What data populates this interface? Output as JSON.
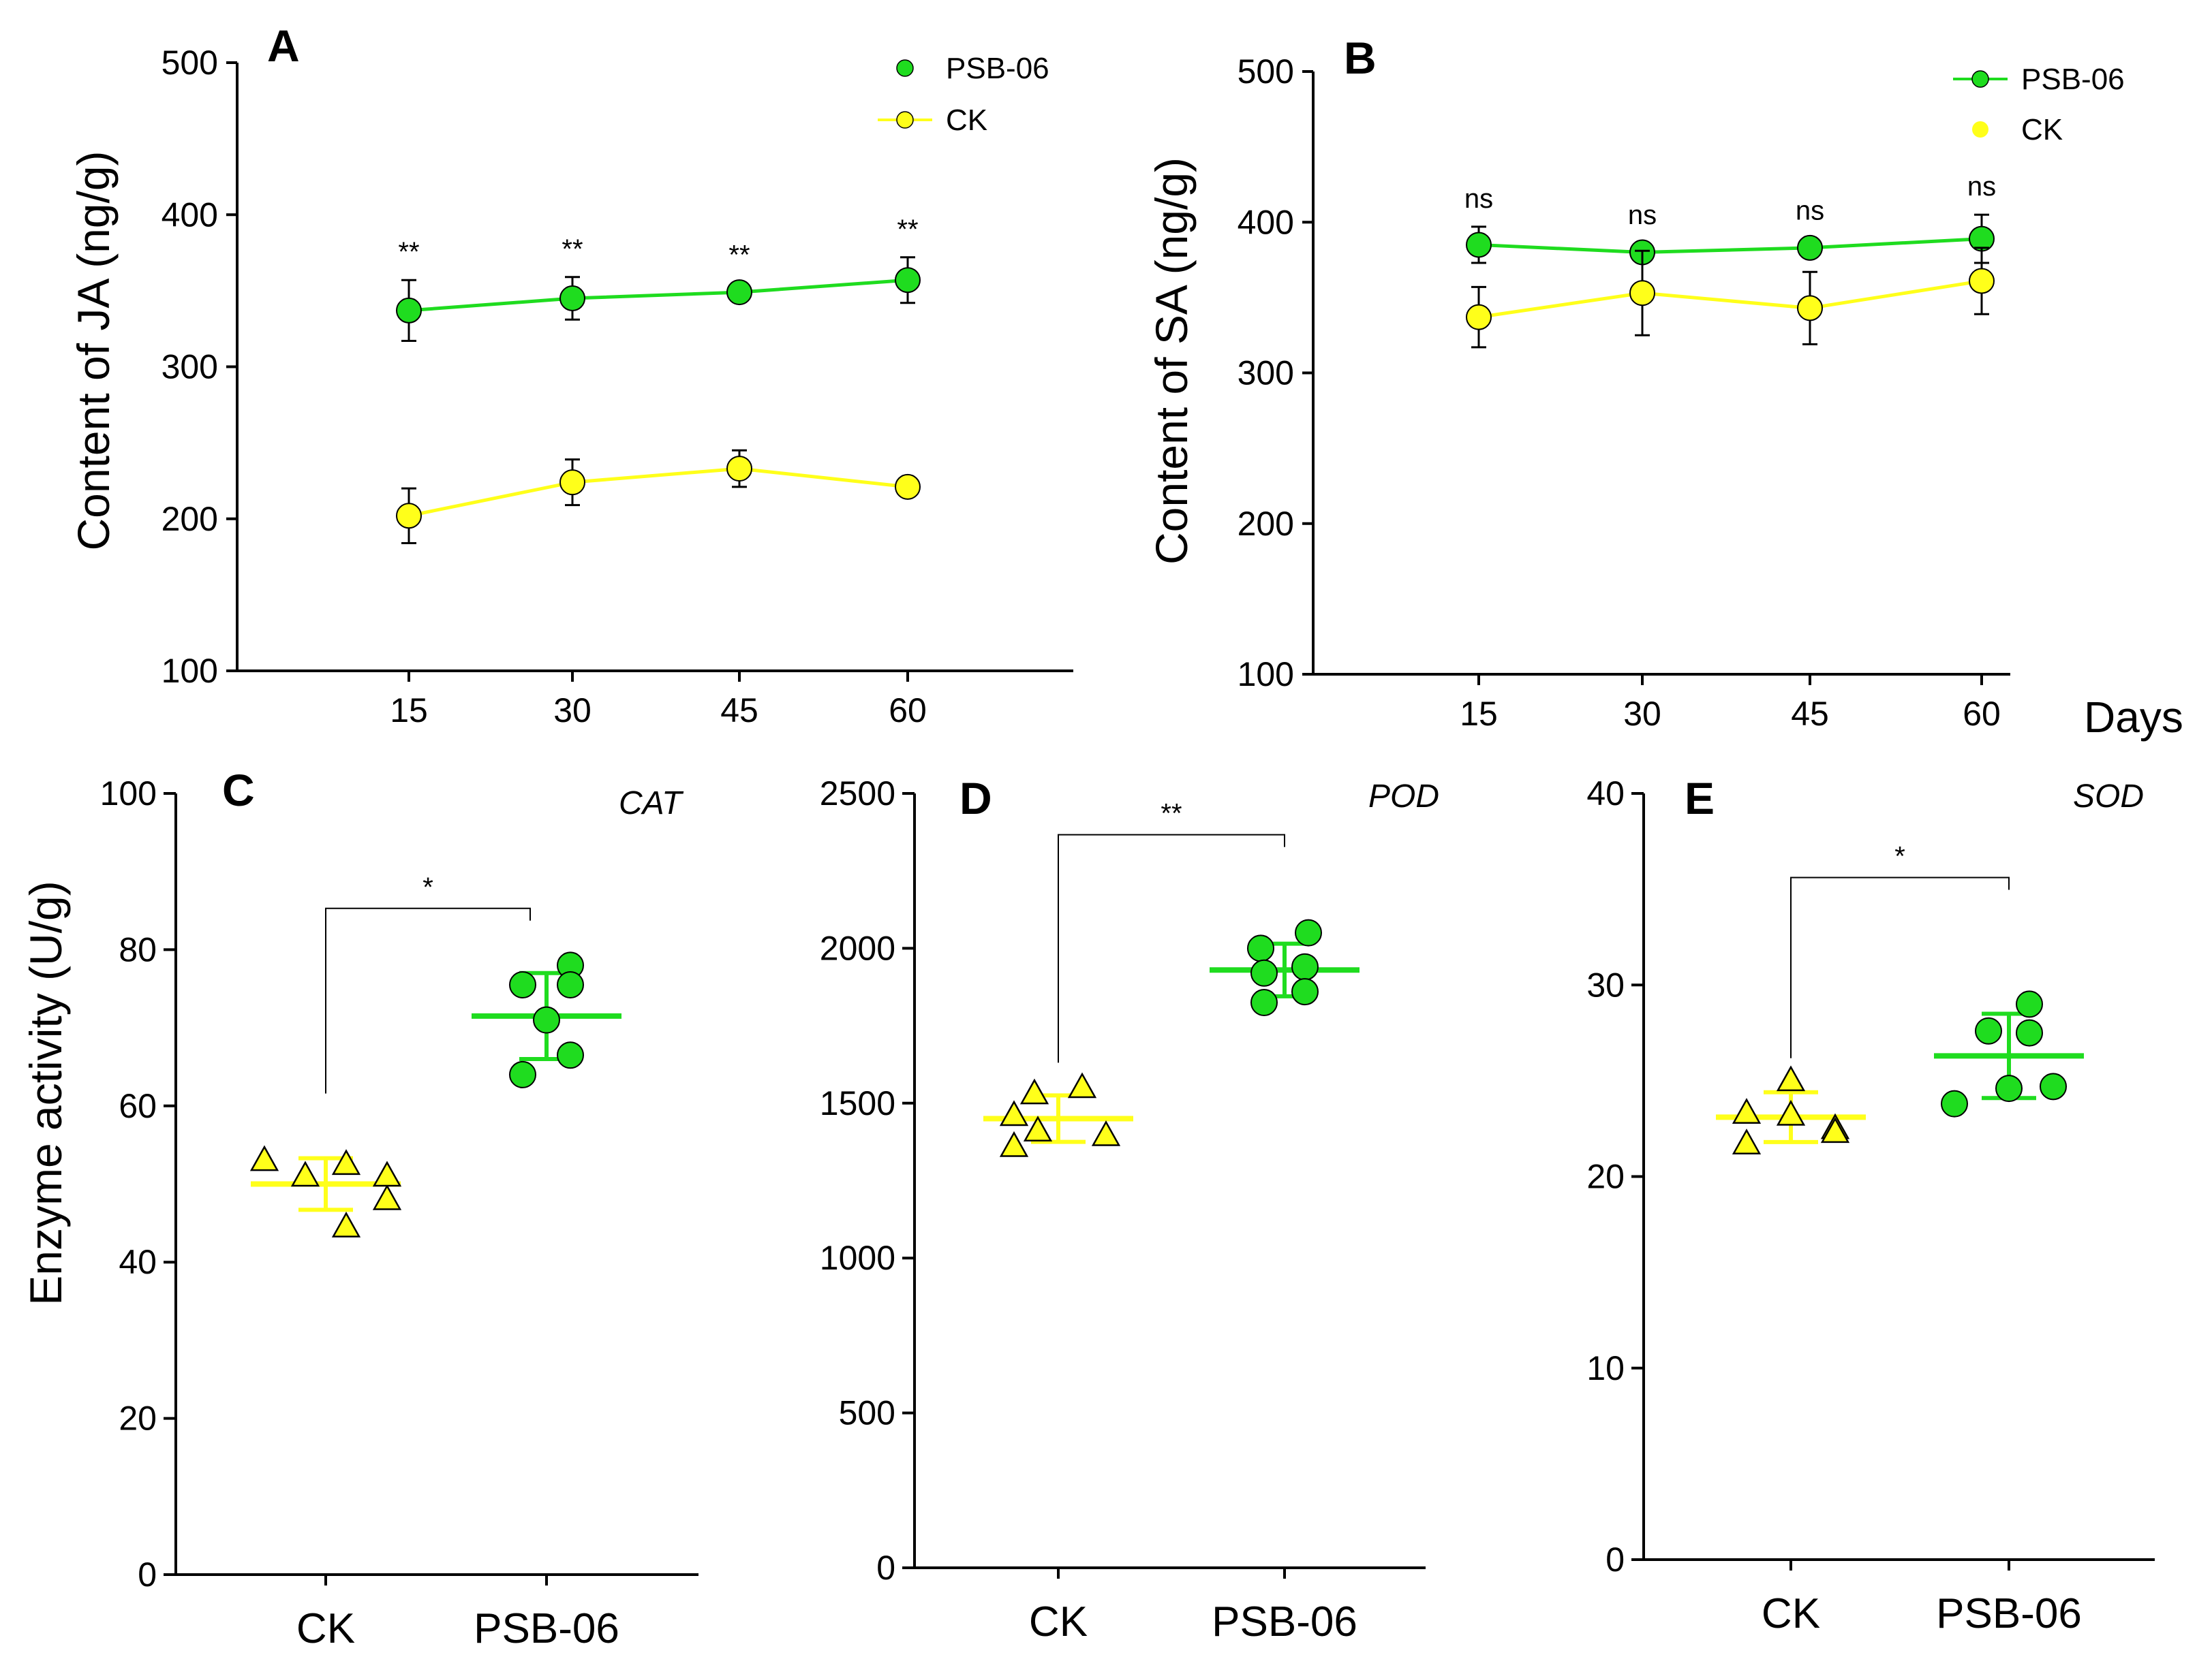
{
  "figure": {
    "days_label": "Days"
  },
  "colors": {
    "psb": "#1fdc1f",
    "ck": "#ffff1a",
    "axis": "#000000"
  },
  "chart_data": [
    {
      "id": "A",
      "type": "line",
      "panel_label": "A",
      "ylabel": "Content of JA (ng/g)",
      "xlabel": "",
      "ylim": [
        100,
        500
      ],
      "yticks": [
        100,
        200,
        300,
        400,
        500
      ],
      "x": [
        15,
        30,
        45,
        60
      ],
      "series": [
        {
          "name": "PSB-06",
          "values": [
            337,
            345,
            349,
            357
          ],
          "errors": [
            20,
            14,
            6,
            15
          ],
          "color": "#1fdc1f"
        },
        {
          "name": "CK",
          "values": [
            202,
            224,
            233,
            221
          ],
          "errors": [
            18,
            15,
            12,
            5
          ],
          "color": "#ffff1a"
        }
      ],
      "significance": [
        "**",
        "**",
        "**",
        "**"
      ],
      "legend": [
        {
          "name": "PSB-06",
          "style": "marker"
        },
        {
          "name": "CK",
          "style": "line-marker"
        }
      ],
      "legend_position": "top-right"
    },
    {
      "id": "B",
      "type": "line",
      "panel_label": "B",
      "ylabel": "Content of SA (ng/g)",
      "xlabel": "Days",
      "ylim": [
        100,
        500
      ],
      "yticks": [
        100,
        200,
        300,
        400,
        500
      ],
      "x": [
        15,
        30,
        45,
        60
      ],
      "series": [
        {
          "name": "PSB-06",
          "values": [
            385,
            380,
            383,
            389
          ],
          "errors": [
            12,
            6,
            6,
            16
          ],
          "color": "#1fdc1f"
        },
        {
          "name": "CK",
          "values": [
            337,
            353,
            343,
            361
          ],
          "errors": [
            20,
            28,
            24,
            22
          ],
          "color": "#ffff1a"
        }
      ],
      "significance": [
        "ns",
        "ns",
        "ns",
        "ns"
      ],
      "legend": [
        {
          "name": "PSB-06",
          "style": "line-marker"
        },
        {
          "name": "CK",
          "style": "marker"
        }
      ],
      "legend_position": "top-right"
    },
    {
      "id": "C",
      "type": "scatter",
      "panel_label": "C",
      "enzyme": "CAT",
      "ylabel": "Enzyme activity (U/g)",
      "ylim": [
        0,
        100
      ],
      "yticks": [
        0,
        20,
        40,
        60,
        80,
        100
      ],
      "categories": [
        "CK",
        "PSB-06"
      ],
      "groups": [
        {
          "name": "CK",
          "marker": "triangle",
          "color": "#ffff1a",
          "points": [
            53,
            51,
            52.5,
            48,
            44.5,
            51
          ],
          "mean": 50,
          "sd": 3.3
        },
        {
          "name": "PSB-06",
          "marker": "circle",
          "color": "#1fdc1f",
          "points": [
            75.5,
            78,
            71,
            75.5,
            64,
            66.5
          ],
          "mean": 71.5,
          "sd": 5.5
        }
      ],
      "significance": "*"
    },
    {
      "id": "D",
      "type": "scatter",
      "panel_label": "D",
      "enzyme": "POD",
      "ylabel": "",
      "ylim": [
        0,
        2500
      ],
      "yticks": [
        0,
        500,
        1000,
        1500,
        2000,
        2500
      ],
      "categories": [
        "CK",
        "PSB-06"
      ],
      "groups": [
        {
          "name": "CK",
          "marker": "triangle",
          "color": "#ffff1a",
          "points": [
            1460,
            1530,
            1550,
            1410,
            1360,
            1395
          ],
          "mean": 1450,
          "sd": 75
        },
        {
          "name": "PSB-06",
          "marker": "circle",
          "color": "#1fdc1f",
          "points": [
            2000,
            2050,
            1920,
            1940,
            1825,
            1860
          ],
          "mean": 1930,
          "sd": 85
        },
        {
          "name": "",
          "marker": "none",
          "points": []
        }
      ],
      "significance": "**"
    },
    {
      "id": "E",
      "type": "scatter",
      "panel_label": "E",
      "enzyme": "SOD",
      "ylabel": "",
      "ylim": [
        0,
        40
      ],
      "yticks": [
        0,
        10,
        20,
        30,
        40
      ],
      "categories": [
        "CK",
        "PSB-06"
      ],
      "groups": [
        {
          "name": "CK",
          "marker": "triangle",
          "color": "#ffff1a",
          "points": [
            23.3,
            25,
            22.5,
            21.7,
            23.2,
            22.3
          ],
          "mean": 23.1,
          "sd": 1.3
        },
        {
          "name": "PSB-06",
          "marker": "circle",
          "color": "#1fdc1f",
          "points": [
            27.6,
            29,
            27.5,
            23.8,
            24.7,
            24.6
          ],
          "mean": 26.3,
          "sd": 2.2
        }
      ],
      "significance": "*"
    }
  ]
}
